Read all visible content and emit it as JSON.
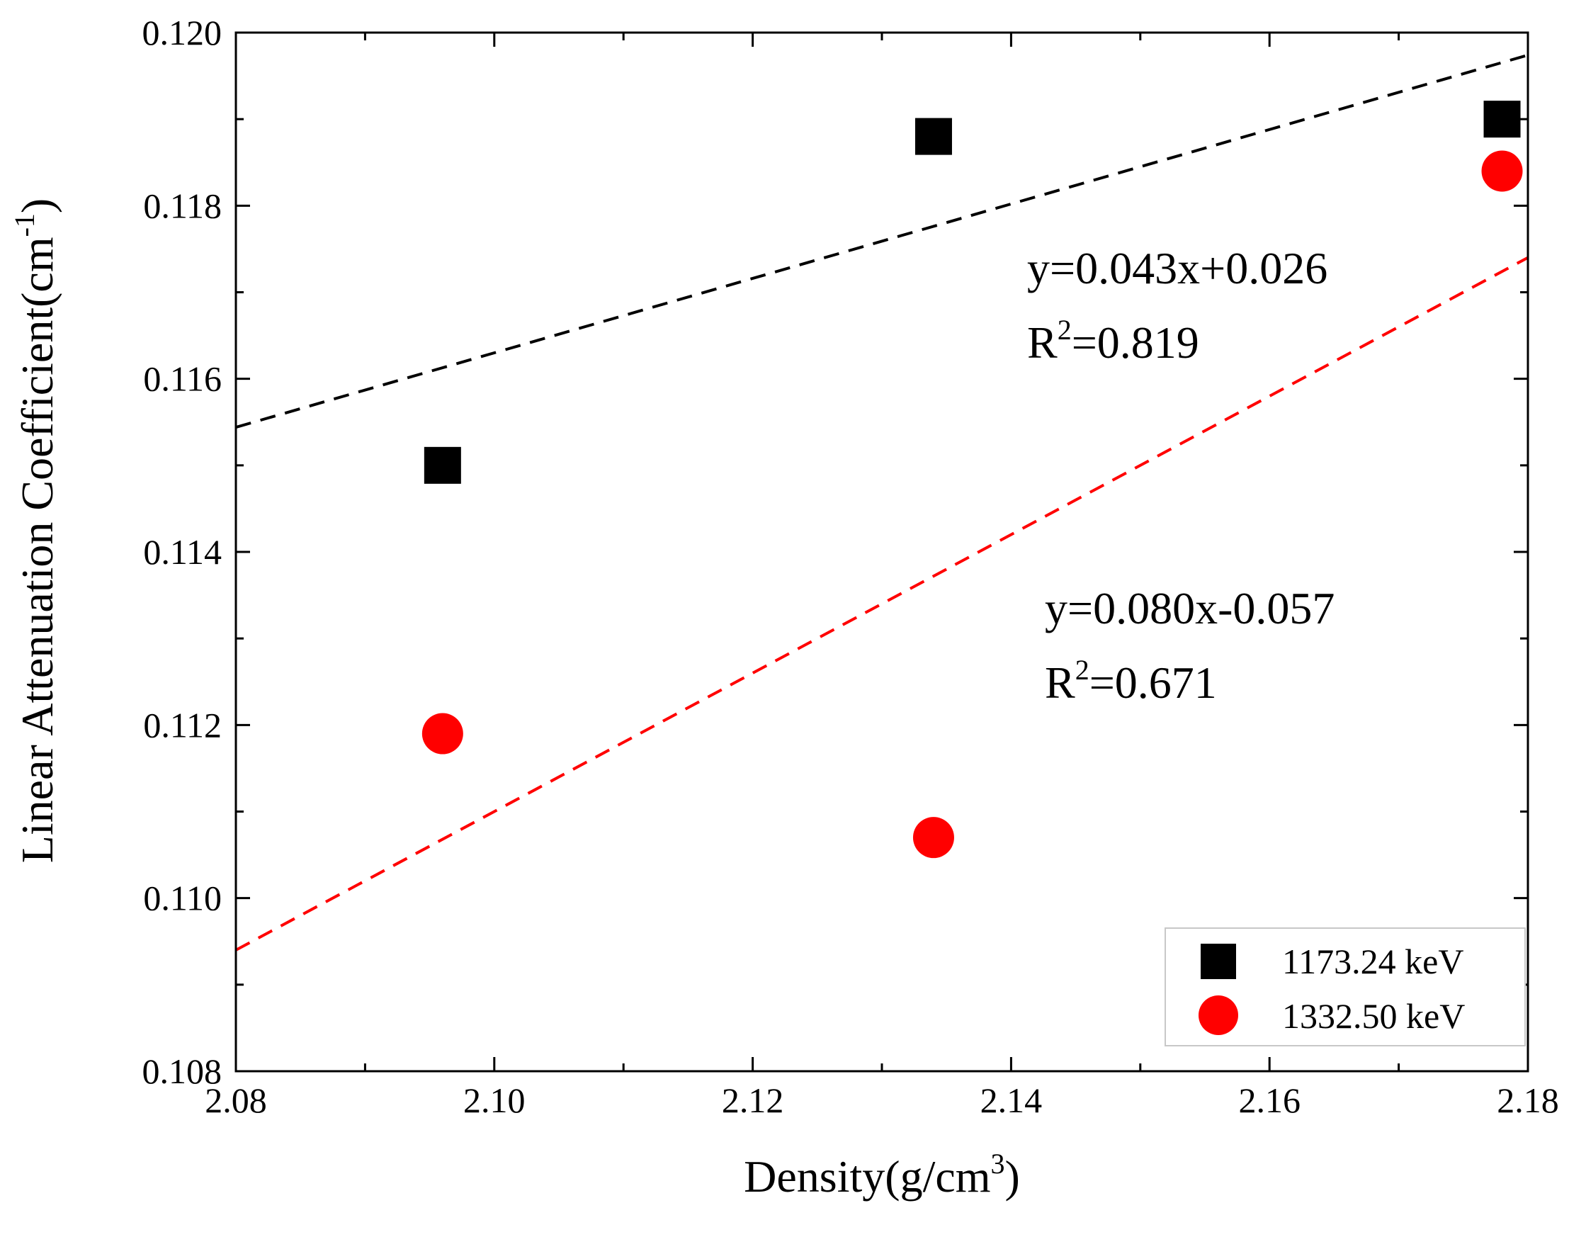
{
  "chart_data": {
    "type": "scatter",
    "title": "",
    "xlabel": "Density(g/cm",
    "xlabel_sup": "3",
    "xlabel_tail": ")",
    "ylabel": "Linear Attenuation Coefficient(cm",
    "ylabel_sup": "-1",
    "ylabel_tail": ")",
    "xlim": [
      2.08,
      2.18
    ],
    "ylim": [
      0.108,
      0.12
    ],
    "x_ticks": [
      2.08,
      2.1,
      2.12,
      2.14,
      2.16,
      2.18
    ],
    "x_tick_labels": [
      "2.08",
      "2.10",
      "2.12",
      "2.14",
      "2.16",
      "2.18"
    ],
    "x_minor_ticks": [
      2.09,
      2.11,
      2.13,
      2.15,
      2.17
    ],
    "y_ticks": [
      0.108,
      0.11,
      0.112,
      0.114,
      0.116,
      0.118,
      0.12
    ],
    "y_tick_labels": [
      "0.108",
      "0.110",
      "0.112",
      "0.114",
      "0.116",
      "0.118",
      "0.120"
    ],
    "y_minor_ticks": [
      0.109,
      0.111,
      0.113,
      0.115,
      0.117,
      0.119
    ],
    "grid": false,
    "legend_position": "bottom-right",
    "series": [
      {
        "name": "1173.24 keV",
        "marker": "square",
        "color": "#000000",
        "x": [
          2.096,
          2.134,
          2.178
        ],
        "y": [
          0.115,
          0.1188,
          0.119
        ],
        "fit": {
          "slope": 0.043,
          "intercept": 0.026,
          "style": "dashed",
          "color": "#000000"
        },
        "annotation": {
          "equation": "y=0.043x+0.026",
          "r2_prefix": "R",
          "r2_sup": "2",
          "r2_value": "=0.819"
        }
      },
      {
        "name": "1332.50 keV",
        "marker": "circle",
        "color": "#ff0000",
        "x": [
          2.096,
          2.134,
          2.178
        ],
        "y": [
          0.1119,
          0.1107,
          0.1184
        ],
        "fit": {
          "slope": 0.08,
          "intercept": -0.057,
          "style": "dashed",
          "color": "#ff0000"
        },
        "annotation": {
          "equation": "y=0.080x-0.057",
          "r2_prefix": "R",
          "r2_sup": "2",
          "r2_value": "=0.671"
        }
      }
    ]
  }
}
